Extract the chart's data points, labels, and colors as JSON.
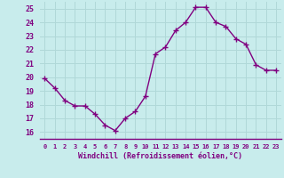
{
  "x": [
    0,
    1,
    2,
    3,
    4,
    5,
    6,
    7,
    8,
    9,
    10,
    11,
    12,
    13,
    14,
    15,
    16,
    17,
    18,
    19,
    20,
    21,
    22,
    23
  ],
  "y": [
    19.9,
    19.2,
    18.3,
    17.9,
    17.9,
    17.3,
    16.5,
    16.1,
    17.0,
    17.5,
    18.6,
    21.7,
    22.2,
    23.4,
    24.0,
    25.1,
    25.1,
    24.0,
    23.7,
    22.8,
    22.4,
    20.9,
    20.5,
    20.5
  ],
  "line_color": "#800080",
  "marker": "+",
  "marker_size": 4,
  "marker_linewidth": 1.0,
  "background_color": "#c8ecec",
  "grid_color": "#b0d8d8",
  "xlabel": "Windchill (Refroidissement éolien,°C)",
  "xlabel_color": "#800080",
  "tick_color": "#800080",
  "ylim": [
    15.5,
    25.5
  ],
  "yticks": [
    16,
    17,
    18,
    19,
    20,
    21,
    22,
    23,
    24,
    25
  ],
  "xlim": [
    -0.5,
    23.5
  ],
  "xticks": [
    0,
    1,
    2,
    3,
    4,
    5,
    6,
    7,
    8,
    9,
    10,
    11,
    12,
    13,
    14,
    15,
    16,
    17,
    18,
    19,
    20,
    21,
    22,
    23
  ],
  "spine_color": "#800080",
  "line_width": 1.0
}
